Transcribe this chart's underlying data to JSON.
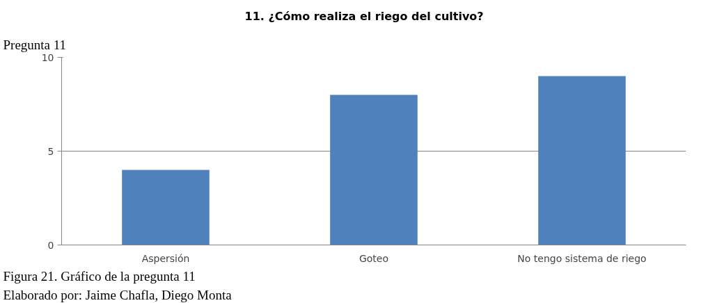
{
  "chart_data": {
    "type": "bar",
    "title": "11.      ¿Cómo realiza el riego del cultivo?",
    "categories": [
      "Aspersión",
      "Goteo",
      "No tengo sistema de riego"
    ],
    "values": [
      4,
      8,
      9
    ],
    "color": "#4f81bd",
    "ylim": [
      0,
      10
    ],
    "yticks": [
      0,
      5,
      10
    ],
    "grid": "y",
    "annotations": [
      "Pregunta 11",
      "Figura 21. Gráfico de la pregunta 11",
      "Elaborado por: Jaime Chafla, Diego Monta"
    ]
  }
}
